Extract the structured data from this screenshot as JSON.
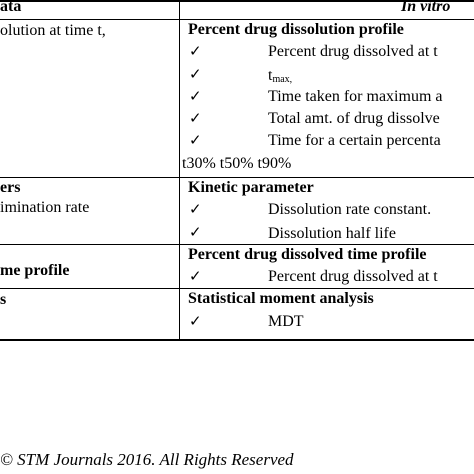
{
  "header": {
    "left": "ata",
    "right": "In vitro"
  },
  "rows": [
    {
      "left": [
        "olution at time t,"
      ],
      "right_heading": "Percent drug dissolution profile",
      "items": [
        "Percent drug dissolved at t",
        "t",
        "Time taken for maximum a",
        "Total amt. of drug dissolve",
        "Time for a certain percenta"
      ],
      "tmax_sub": "max,",
      "tail": "t30% t50% t90%"
    },
    {
      "left": [
        "ers",
        "imination rate"
      ],
      "right_heading": "Kinetic parameter",
      "items": [
        "Dissolution rate constant.",
        "Dissolution half life"
      ]
    },
    {
      "left": [
        "me profile"
      ],
      "right_heading": "Percent drug dissolved time profile",
      "items": [
        "Percent drug dissolved at t"
      ]
    },
    {
      "left": [
        "s"
      ],
      "right_heading": "Statistical moment analysis",
      "items": [
        "MDT"
      ]
    }
  ],
  "check_glyph": "✓",
  "footer": "© STM Journals 2016. All Rights Reserved"
}
